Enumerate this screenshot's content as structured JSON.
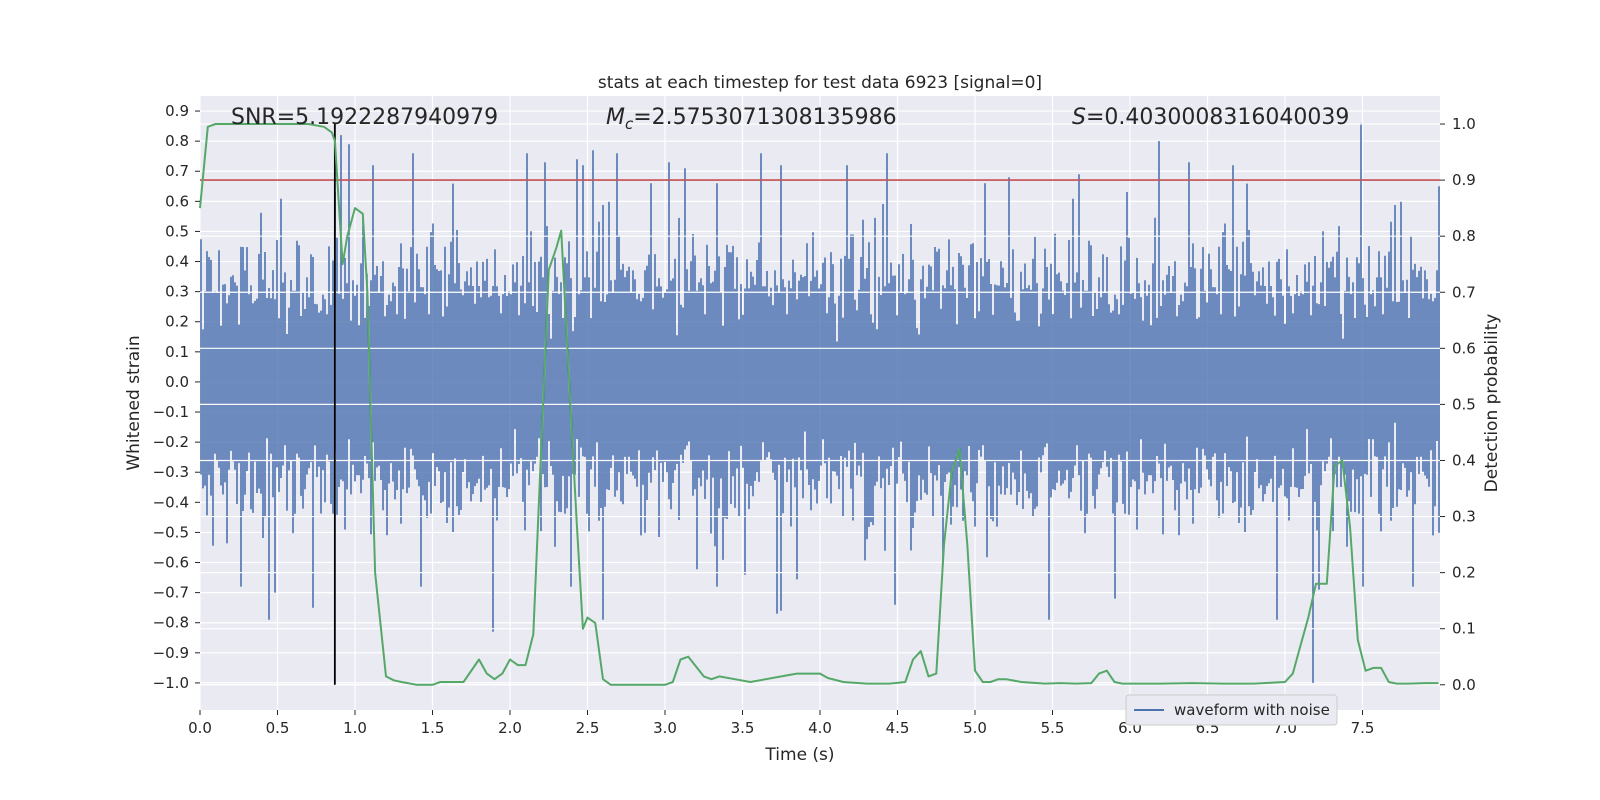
{
  "chart_data": {
    "type": "line",
    "title": "stats at each timestep for test data 6923 [signal=0]",
    "xlabel": "Time (s)",
    "ylabel": "Whitened strain",
    "ylabel_right": "Detection probability",
    "xlim": [
      0.0,
      8.0
    ],
    "ylim": [
      -1.09,
      0.95
    ],
    "ylim_right": [
      -0.045,
      1.05
    ],
    "x_ticks": [
      "0.0",
      "0.5",
      "1.0",
      "1.5",
      "2.0",
      "2.5",
      "3.0",
      "3.5",
      "4.0",
      "4.5",
      "5.0",
      "5.5",
      "6.0",
      "6.5",
      "7.0",
      "7.5"
    ],
    "y_ticks": [
      "0.9",
      "0.8",
      "0.7",
      "0.6",
      "0.5",
      "0.4",
      "0.3",
      "0.2",
      "0.1",
      "0.0",
      "−0.1",
      "−0.2",
      "−0.3",
      "−0.4",
      "−0.5",
      "−0.6",
      "−0.7",
      "−0.8",
      "−0.9",
      "−1.0"
    ],
    "y_ticks_right": [
      "1.0",
      "0.9",
      "0.8",
      "0.7",
      "0.6",
      "0.5",
      "0.4",
      "0.3",
      "0.2",
      "0.1",
      "0.0"
    ],
    "grid": true,
    "legend_position": "lower-right",
    "annotations": {
      "snr": "SNR=5.1922287940979",
      "mc_symbol": "M",
      "mc_subscript": "c",
      "mc_value": "=2.5753071308135986",
      "s_symbol": "S",
      "s_value": "=0.4030008316040039"
    },
    "threshold": {
      "value": 0.9,
      "axis": "right",
      "color": "#c44e52"
    },
    "marker_time": 0.87,
    "series": [
      {
        "name": "waveform with noise",
        "axis": "left",
        "color": "#4c72b0",
        "sample_rate": 2048,
        "envelope_typical": 0.3,
        "peaks": [
          {
            "x": 0.91,
            "y": 0.82
          },
          {
            "x": 0.96,
            "y": 0.79
          },
          {
            "x": 1.12,
            "y": 0.72
          },
          {
            "x": 1.38,
            "y": 0.76
          },
          {
            "x": 2.11,
            "y": 0.76
          },
          {
            "x": 2.22,
            "y": 0.73
          },
          {
            "x": 2.43,
            "y": 0.74
          },
          {
            "x": 2.47,
            "y": 0.72
          },
          {
            "x": 2.53,
            "y": 0.77
          },
          {
            "x": 2.69,
            "y": 0.76
          },
          {
            "x": 3.03,
            "y": 0.73
          },
          {
            "x": 3.13,
            "y": 0.71
          },
          {
            "x": 3.62,
            "y": 0.76
          },
          {
            "x": 3.75,
            "y": 0.72
          },
          {
            "x": 4.17,
            "y": 0.72
          },
          {
            "x": 4.43,
            "y": 0.76
          },
          {
            "x": 5.22,
            "y": 0.68
          },
          {
            "x": 5.67,
            "y": 0.69
          },
          {
            "x": 6.19,
            "y": 0.8
          },
          {
            "x": 6.38,
            "y": 0.73
          },
          {
            "x": 6.67,
            "y": 0.72
          },
          {
            "x": 7.49,
            "y": 0.86
          },
          {
            "x": 7.99,
            "y": 0.65
          },
          {
            "x": 0.45,
            "y": -0.79
          },
          {
            "x": 0.48,
            "y": -0.7
          },
          {
            "x": 0.73,
            "y": -0.75
          },
          {
            "x": 1.42,
            "y": -0.68
          },
          {
            "x": 1.89,
            "y": -0.83
          },
          {
            "x": 2.6,
            "y": -0.79
          },
          {
            "x": 3.72,
            "y": -0.77
          },
          {
            "x": 3.75,
            "y": -0.76
          },
          {
            "x": 4.48,
            "y": -0.74
          },
          {
            "x": 5.48,
            "y": -0.79
          },
          {
            "x": 5.9,
            "y": -0.72
          },
          {
            "x": 6.95,
            "y": -0.79
          },
          {
            "x": 7.18,
            "y": -1.0
          },
          {
            "x": 7.22,
            "y": -0.69
          },
          {
            "x": 7.82,
            "y": -0.68
          }
        ]
      },
      {
        "name": "",
        "axis": "right",
        "color": "#55a868",
        "x": [
          0.0,
          0.05,
          0.1,
          0.2,
          0.3,
          0.4,
          0.5,
          0.6,
          0.7,
          0.8,
          0.85,
          0.87,
          0.92,
          0.95,
          1.0,
          1.05,
          1.08,
          1.13,
          1.2,
          1.25,
          1.3,
          1.4,
          1.5,
          1.55,
          1.7,
          1.8,
          1.85,
          1.9,
          1.95,
          2.0,
          2.05,
          2.1,
          2.15,
          2.25,
          2.3,
          2.33,
          2.38,
          2.43,
          2.47,
          2.5,
          2.55,
          2.6,
          2.65,
          2.7,
          2.8,
          2.9,
          3.0,
          3.05,
          3.1,
          3.15,
          3.25,
          3.3,
          3.35,
          3.45,
          3.55,
          3.65,
          3.75,
          3.85,
          3.95,
          4.0,
          4.05,
          4.15,
          4.3,
          4.45,
          4.55,
          4.6,
          4.65,
          4.7,
          4.75,
          4.8,
          4.85,
          4.9,
          4.95,
          5.0,
          5.05,
          5.1,
          5.15,
          5.2,
          5.3,
          5.45,
          5.55,
          5.65,
          5.75,
          5.8,
          5.85,
          5.9,
          5.95,
          6.05,
          6.2,
          6.4,
          6.6,
          6.8,
          7.0,
          7.05,
          7.1,
          7.15,
          7.2,
          7.27,
          7.32,
          7.37,
          7.42,
          7.47,
          7.52,
          7.57,
          7.62,
          7.67,
          7.72,
          7.8,
          7.9,
          7.99
        ],
        "y": [
          0.85,
          0.995,
          1.0,
          1.0,
          1.0,
          1.0,
          1.0,
          1.0,
          1.0,
          0.995,
          0.985,
          0.97,
          0.75,
          0.8,
          0.85,
          0.84,
          0.7,
          0.2,
          0.015,
          0.008,
          0.005,
          0.0,
          0.0,
          0.005,
          0.005,
          0.045,
          0.02,
          0.01,
          0.02,
          0.045,
          0.035,
          0.035,
          0.09,
          0.74,
          0.78,
          0.81,
          0.55,
          0.29,
          0.1,
          0.12,
          0.11,
          0.01,
          0.0,
          0.0,
          0.0,
          0.0,
          0.0,
          0.005,
          0.045,
          0.05,
          0.015,
          0.01,
          0.015,
          0.01,
          0.005,
          0.01,
          0.015,
          0.02,
          0.02,
          0.02,
          0.012,
          0.005,
          0.002,
          0.002,
          0.005,
          0.045,
          0.06,
          0.015,
          0.02,
          0.25,
          0.38,
          0.42,
          0.25,
          0.025,
          0.005,
          0.005,
          0.01,
          0.01,
          0.005,
          0.002,
          0.003,
          0.002,
          0.003,
          0.02,
          0.025,
          0.005,
          0.002,
          0.002,
          0.002,
          0.003,
          0.002,
          0.002,
          0.005,
          0.02,
          0.07,
          0.12,
          0.18,
          0.18,
          0.39,
          0.4,
          0.28,
          0.08,
          0.025,
          0.03,
          0.03,
          0.005,
          0.002,
          0.002,
          0.003,
          0.003
        ]
      }
    ]
  }
}
